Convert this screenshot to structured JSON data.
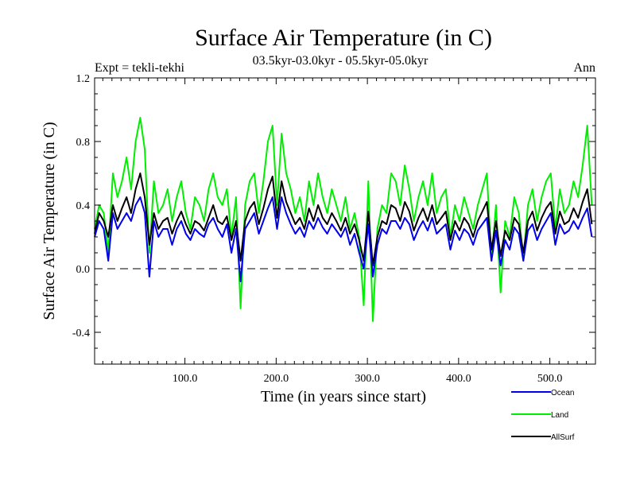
{
  "chart_data": {
    "type": "line",
    "title": "Surface Air Temperature (in C)",
    "subtitle": "03.5kyr-03.0kyr - 05.5kyr-05.0kyr",
    "left_label": "Expt = tekli-tekhi",
    "right_label": "Ann",
    "xlabel": "Time (in years since start)",
    "ylabel": "Surface Air Temperature (in C)",
    "xlim": [
      1,
      550
    ],
    "ylim": [
      -0.6,
      1.2
    ],
    "xticks": [
      {
        "value": 100,
        "label": "100.0"
      },
      {
        "value": 200,
        "label": "200.0"
      },
      {
        "value": 300,
        "label": "300.0"
      },
      {
        "value": 400,
        "label": "400.0"
      },
      {
        "value": 500,
        "label": "500.0"
      }
    ],
    "yticks": [
      {
        "value": -0.4,
        "label": "-0.4"
      },
      {
        "value": 0.0,
        "label": "0.0"
      },
      {
        "value": 0.4,
        "label": "0.4"
      },
      {
        "value": 0.8,
        "label": "0.8"
      },
      {
        "value": 1.2,
        "label": "1.2"
      }
    ],
    "reference_line": {
      "y": 0.0,
      "style": "dashed",
      "color": "#000000"
    },
    "series": [
      {
        "name": "Land",
        "color": "#00ee00",
        "x_start": 1,
        "x_step": 5,
        "values": [
          0.25,
          0.4,
          0.35,
          0.1,
          0.6,
          0.45,
          0.55,
          0.7,
          0.5,
          0.8,
          0.95,
          0.75,
          0.1,
          0.55,
          0.35,
          0.4,
          0.5,
          0.3,
          0.45,
          0.55,
          0.35,
          0.25,
          0.45,
          0.4,
          0.3,
          0.5,
          0.6,
          0.45,
          0.4,
          0.5,
          0.2,
          0.45,
          -0.25,
          0.4,
          0.55,
          0.6,
          0.35,
          0.55,
          0.8,
          0.9,
          0.4,
          0.85,
          0.6,
          0.5,
          0.35,
          0.45,
          0.3,
          0.55,
          0.4,
          0.6,
          0.45,
          0.35,
          0.5,
          0.4,
          0.3,
          0.45,
          0.25,
          0.35,
          0.2,
          -0.23,
          0.55,
          -0.33,
          0.25,
          0.4,
          0.35,
          0.6,
          0.55,
          0.4,
          0.65,
          0.5,
          0.3,
          0.45,
          0.55,
          0.4,
          0.6,
          0.35,
          0.45,
          0.5,
          0.2,
          0.4,
          0.3,
          0.45,
          0.35,
          0.25,
          0.4,
          0.5,
          0.6,
          0.05,
          0.4,
          -0.15,
          0.3,
          0.2,
          0.45,
          0.35,
          0.05,
          0.4,
          0.5,
          0.3,
          0.45,
          0.55,
          0.6,
          0.25,
          0.5,
          0.35,
          0.4,
          0.55,
          0.45,
          0.65,
          0.9,
          0.4
        ]
      },
      {
        "name": "AllSurf",
        "color": "#000000",
        "x_start": 1,
        "x_step": 5,
        "values": [
          0.22,
          0.35,
          0.3,
          0.2,
          0.4,
          0.3,
          0.38,
          0.45,
          0.35,
          0.5,
          0.6,
          0.45,
          0.15,
          0.35,
          0.25,
          0.3,
          0.32,
          0.22,
          0.3,
          0.36,
          0.28,
          0.22,
          0.3,
          0.28,
          0.24,
          0.32,
          0.4,
          0.3,
          0.28,
          0.33,
          0.18,
          0.3,
          0.05,
          0.3,
          0.38,
          0.42,
          0.28,
          0.38,
          0.5,
          0.58,
          0.32,
          0.55,
          0.42,
          0.35,
          0.28,
          0.32,
          0.25,
          0.38,
          0.3,
          0.4,
          0.32,
          0.28,
          0.35,
          0.3,
          0.24,
          0.32,
          0.22,
          0.28,
          0.18,
          0.05,
          0.36,
          0.02,
          0.2,
          0.3,
          0.28,
          0.4,
          0.38,
          0.3,
          0.42,
          0.36,
          0.24,
          0.32,
          0.38,
          0.3,
          0.4,
          0.28,
          0.32,
          0.36,
          0.18,
          0.3,
          0.24,
          0.32,
          0.28,
          0.2,
          0.3,
          0.36,
          0.42,
          0.12,
          0.3,
          0.08,
          0.24,
          0.18,
          0.32,
          0.28,
          0.1,
          0.3,
          0.36,
          0.24,
          0.32,
          0.38,
          0.42,
          0.22,
          0.36,
          0.28,
          0.3,
          0.38,
          0.32,
          0.42,
          0.5,
          0.28
        ]
      },
      {
        "name": "Ocean",
        "color": "#0000ee",
        "x_start": 1,
        "x_step": 5,
        "values": [
          0.2,
          0.3,
          0.25,
          0.05,
          0.35,
          0.25,
          0.3,
          0.35,
          0.3,
          0.4,
          0.45,
          0.35,
          -0.05,
          0.3,
          0.2,
          0.25,
          0.25,
          0.15,
          0.25,
          0.3,
          0.22,
          0.18,
          0.25,
          0.22,
          0.2,
          0.28,
          0.32,
          0.25,
          0.2,
          0.28,
          0.1,
          0.25,
          -0.08,
          0.25,
          0.3,
          0.35,
          0.22,
          0.3,
          0.38,
          0.45,
          0.25,
          0.45,
          0.35,
          0.28,
          0.22,
          0.26,
          0.2,
          0.3,
          0.25,
          0.32,
          0.26,
          0.22,
          0.28,
          0.24,
          0.2,
          0.26,
          0.15,
          0.22,
          0.1,
          0.0,
          0.28,
          -0.05,
          0.15,
          0.25,
          0.22,
          0.3,
          0.3,
          0.25,
          0.32,
          0.28,
          0.18,
          0.25,
          0.3,
          0.24,
          0.32,
          0.22,
          0.25,
          0.28,
          0.12,
          0.24,
          0.18,
          0.25,
          0.22,
          0.15,
          0.24,
          0.28,
          0.32,
          0.05,
          0.24,
          0.02,
          0.18,
          0.12,
          0.26,
          0.22,
          0.05,
          0.24,
          0.28,
          0.18,
          0.25,
          0.3,
          0.35,
          0.15,
          0.28,
          0.22,
          0.24,
          0.3,
          0.25,
          0.32,
          0.38,
          0.2
        ]
      }
    ],
    "legend": {
      "position": "bottom-right",
      "entries": [
        {
          "name": "Ocean",
          "color": "#0000ee"
        },
        {
          "name": "Land",
          "color": "#00ee00"
        },
        {
          "name": "AllSurf",
          "color": "#000000"
        }
      ]
    }
  }
}
